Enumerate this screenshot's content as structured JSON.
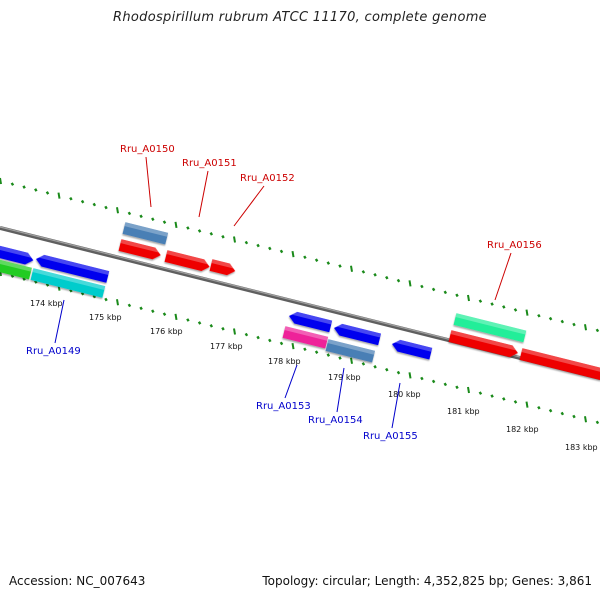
{
  "title": "Rhodospirillum rubrum ATCC 11170, complete genome",
  "footer": {
    "accession": "Accession: NC_007643",
    "summary": "Topology: circular; Length: 4,352,825 bp; Genes: 3,861"
  },
  "colors": {
    "backbone": "#7a7a7a",
    "tick": "#1a8a1a",
    "forward_label": "#cc0000",
    "reverse_label": "#0000cc"
  },
  "ticks": [
    "174 kbp",
    "175 kbp",
    "176 kbp",
    "177 kbp",
    "178 kbp",
    "179 kbp",
    "180 kbp",
    "181 kbp",
    "182 kbp",
    "183 kbp"
  ],
  "genes": [
    {
      "label": "Rru_A0149"
    },
    {
      "label": "Rru_A0150"
    },
    {
      "label": "Rru_A0151"
    },
    {
      "label": "Rru_A0152"
    },
    {
      "label": "Rru_A0153"
    },
    {
      "label": "Rru_A0154"
    },
    {
      "label": "Rru_A0155"
    },
    {
      "label": "Rru_A0156"
    }
  ]
}
